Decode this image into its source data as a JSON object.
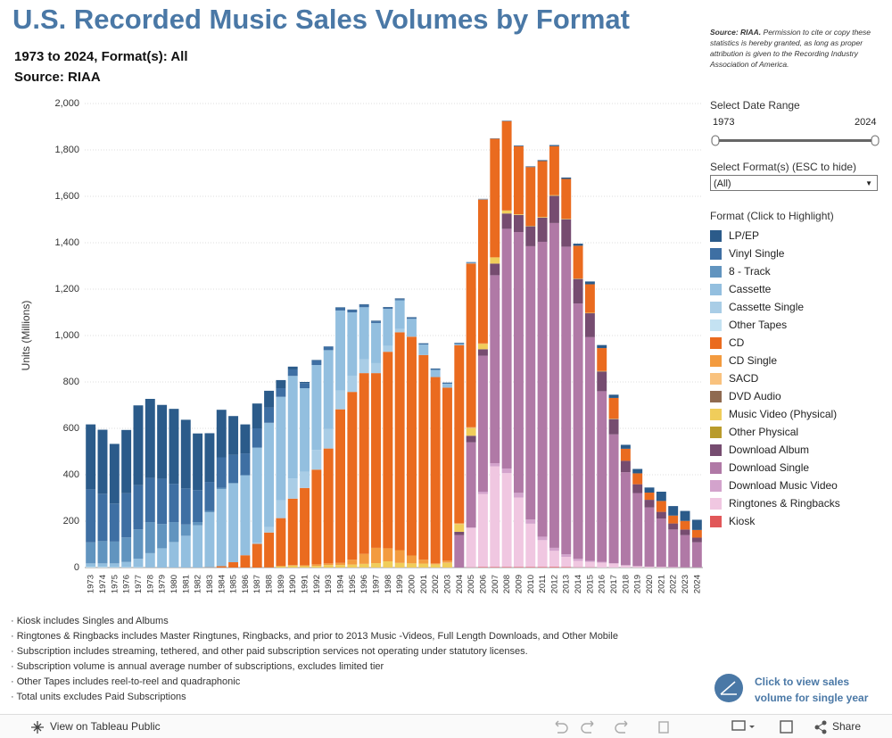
{
  "header": {
    "title": "U.S. Recorded Music Sales Volumes by Format",
    "subtitle_1": "1973 to 2024, Format(s): All",
    "subtitle_2": "Source: RIAA"
  },
  "source_note": {
    "bold": "Source: RIAA.",
    "text": "Permission to cite or copy these statistics is hereby granted, as long as proper attribution is given to the Recording Industry Association of America."
  },
  "filters": {
    "date_range_label": "Select Date Range",
    "date_start": "1973",
    "date_end": "2024",
    "format_label": "Select Format(s) (ESC to hide)",
    "format_value": "(All)",
    "legend_title": "Format (Click to Highlight)"
  },
  "footnotes": [
    "· Kiosk includes Singles and Albums",
    "· Ringtones & Ringbacks includes Master Ringtunes, Ringbacks, and prior to 2013 Music -Videos, Full Length Downloads, and Other Mobile",
    "· Subscription includes streaming, tethered, and other paid subscription services not operating under statutory licenses.",
    "· Subscription volume is annual average number of subscriptions, excludes limited tier",
    "· Other Tapes includes reel-to-reel and quadraphonic",
    "· Total units excludes Paid Subscriptions"
  ],
  "single_year_link": [
    "Click to view sales",
    "volume for single year"
  ],
  "toolbar": {
    "view": "View on Tableau Public",
    "share": "Share"
  },
  "chart_data": {
    "type": "bar",
    "stacked": true,
    "y_label": "Units (Millions)",
    "ylim": [
      0,
      2000
    ],
    "yticks": [
      0,
      200,
      400,
      600,
      800,
      {
        "value": 1000,
        "label": "1,000"
      },
      {
        "value": 1200,
        "label": "1,200"
      },
      {
        "value": 1400,
        "label": "1,400"
      },
      {
        "value": 1600,
        "label": "1,600"
      },
      {
        "value": 1800,
        "label": "1,800"
      },
      {
        "value": 2000,
        "label": "2,000"
      }
    ],
    "grid": true,
    "categories": [
      "1973",
      "1974",
      "1975",
      "1976",
      "1977",
      "1978",
      "1979",
      "1980",
      "1981",
      "1982",
      "1983",
      "1984",
      "1985",
      "1986",
      "1987",
      "1988",
      "1989",
      "1990",
      "1991",
      "1992",
      "1993",
      "1994",
      "1995",
      "1996",
      "1997",
      "1998",
      "1999",
      "2000",
      "2001",
      "2002",
      "2003",
      "2004",
      "2005",
      "2006",
      "2007",
      "2008",
      "2009",
      "2010",
      "2011",
      "2012",
      "2013",
      "2014",
      "2015",
      "2016",
      "2017",
      "2018",
      "2019",
      "2020",
      "2021",
      "2022",
      "2023",
      "2024"
    ],
    "series": [
      {
        "name": "LP/EP",
        "color": "#2b5b8a",
        "values": [
          280,
          276,
          257,
          273,
          344,
          341,
          318,
          323,
          296,
          244,
          210,
          205,
          167,
          125,
          107,
          72,
          35,
          12,
          5,
          2,
          1,
          2,
          2,
          3,
          3,
          3,
          3,
          2,
          1,
          2,
          1,
          1,
          1,
          1,
          1,
          2,
          3,
          3,
          4,
          5,
          6,
          9,
          12,
          13,
          14,
          17,
          19,
          22,
          40,
          41,
          43,
          44
        ]
      },
      {
        "name": "Vinyl Single",
        "color": "#3e6fa3",
        "values": [
          228,
          204,
          164,
          190,
          190,
          190,
          195,
          165,
          155,
          138,
          125,
          131,
          121,
          94,
          83,
          66,
          37,
          28,
          22,
          20,
          15,
          12,
          10,
          10,
          7,
          5,
          5,
          5,
          5,
          4,
          4,
          4,
          2,
          1,
          1,
          0,
          0,
          0,
          0,
          0,
          0,
          0,
          0,
          0,
          0,
          0,
          0,
          0,
          0,
          0,
          0,
          0
        ]
      },
      {
        "name": "8 - Track",
        "color": "#6194bf",
        "values": [
          91,
          96,
          94,
          106,
          127,
          134,
          105,
          86,
          49,
          14,
          6,
          6,
          3,
          0,
          0,
          0,
          0,
          0,
          0,
          0,
          0,
          0,
          0,
          0,
          0,
          0,
          0,
          0,
          0,
          0,
          0,
          0,
          0,
          0,
          0,
          0,
          0,
          0,
          0,
          0,
          0,
          0,
          0,
          0,
          0,
          0,
          0,
          0,
          0,
          0,
          0,
          0
        ]
      },
      {
        "name": "Cassette",
        "color": "#93bfdf",
        "values": [
          15,
          15,
          16,
          22,
          36,
          61,
          83,
          110,
          137,
          182,
          237,
          332,
          339,
          345,
          410,
          450,
          446,
          442,
          360,
          366,
          339,
          345,
          273,
          225,
          173,
          159,
          124,
          76,
          45,
          31,
          17,
          5,
          3,
          1,
          0,
          0,
          0,
          0,
          0,
          0,
          0,
          0,
          0,
          0,
          0,
          0,
          0,
          0,
          0,
          0,
          0,
          0
        ]
      },
      {
        "name": "Cassette Single",
        "color": "#a9cde6",
        "values": [
          0,
          0,
          0,
          0,
          0,
          0,
          0,
          0,
          0,
          0,
          0,
          0,
          0,
          0,
          5,
          23,
          77,
          87,
          70,
          85,
          85,
          81,
          70,
          59,
          43,
          26,
          14,
          1,
          0,
          0,
          0,
          0,
          0,
          0,
          0,
          0,
          0,
          0,
          0,
          0,
          0,
          0,
          0,
          0,
          0,
          0,
          0,
          0,
          0,
          0,
          0,
          0
        ]
      },
      {
        "name": "Other Tapes",
        "color": "#c4e2f2",
        "values": [
          3,
          3,
          2,
          2,
          2,
          1,
          0,
          0,
          0,
          0,
          0,
          0,
          0,
          0,
          0,
          0,
          0,
          0,
          0,
          0,
          0,
          0,
          0,
          0,
          0,
          0,
          0,
          0,
          0,
          0,
          0,
          0,
          0,
          0,
          0,
          0,
          0,
          0,
          0,
          0,
          0,
          0,
          0,
          0,
          0,
          0,
          0,
          0,
          0,
          0,
          0,
          0
        ]
      },
      {
        "name": "CD",
        "color": "#ea6b1f",
        "values": [
          0,
          0,
          0,
          0,
          0,
          0,
          0,
          0,
          0,
          0,
          1,
          6,
          23,
          53,
          102,
          150,
          207,
          287,
          333,
          408,
          495,
          662,
          723,
          779,
          753,
          847,
          939,
          943,
          882,
          803,
          746,
          767,
          705,
          620,
          511,
          385,
          293,
          253,
          241,
          211,
          172,
          141,
          123,
          99,
          89,
          52,
          47,
          31,
          47,
          34,
          37,
          33
        ]
      },
      {
        "name": "CD Single",
        "color": "#f39b3f",
        "values": [
          0,
          0,
          0,
          0,
          0,
          0,
          0,
          0,
          0,
          0,
          0,
          0,
          0,
          0,
          0,
          1,
          0,
          1,
          4,
          7,
          7,
          9,
          21,
          43,
          66,
          56,
          55,
          34,
          17,
          4,
          8,
          3,
          3,
          2,
          0,
          0,
          0,
          0,
          0,
          0,
          0,
          0,
          0,
          0,
          0,
          0,
          0,
          0,
          0,
          0,
          0,
          0
        ]
      },
      {
        "name": "SACD",
        "color": "#f9c27e",
        "values": [
          0,
          0,
          0,
          0,
          0,
          0,
          0,
          0,
          0,
          0,
          0,
          0,
          0,
          0,
          0,
          0,
          0,
          0,
          0,
          0,
          0,
          0,
          0,
          0,
          0,
          0,
          0,
          0,
          0,
          0,
          1,
          1,
          1,
          0,
          0,
          0,
          0,
          0,
          0,
          0,
          0,
          0,
          0,
          0,
          0,
          0,
          0,
          0,
          0,
          0,
          0,
          0
        ]
      },
      {
        "name": "DVD Audio",
        "color": "#8f6a50",
        "values": [
          0,
          0,
          0,
          0,
          0,
          0,
          0,
          0,
          0,
          0,
          0,
          0,
          0,
          0,
          0,
          0,
          0,
          0,
          0,
          0,
          0,
          0,
          0,
          0,
          0,
          0,
          0,
          0,
          0,
          0,
          0.4,
          0.4,
          0.5,
          0.1,
          0,
          0,
          0,
          0,
          0,
          0,
          0,
          0,
          0,
          0,
          0,
          0,
          0,
          0,
          0,
          0,
          0,
          0
        ]
      },
      {
        "name": "Music Video (Physical)",
        "color": "#f0cd5b",
        "values": [
          0,
          0,
          0,
          0,
          0,
          0,
          0,
          0,
          0,
          0,
          0,
          0,
          0,
          0,
          0,
          0,
          6,
          9,
          6,
          7,
          11,
          11,
          13,
          16,
          19,
          27,
          20,
          18,
          17,
          14,
          20,
          33,
          33,
          23,
          27,
          13,
          3,
          2,
          2,
          2,
          1,
          1,
          1,
          1,
          1,
          0,
          0,
          0,
          0,
          0,
          0,
          0
        ]
      },
      {
        "name": "Other Physical",
        "color": "#b99b2c",
        "values": [
          0,
          0,
          0,
          0,
          0,
          0,
          0,
          0,
          0,
          0,
          0,
          0,
          0,
          0,
          0,
          0,
          0,
          0,
          0,
          0,
          0,
          0,
          0,
          0,
          0,
          0,
          0,
          0,
          0,
          0,
          0,
          0,
          0,
          0,
          0,
          0,
          0,
          0,
          1,
          1,
          1,
          1,
          1,
          1,
          1,
          0,
          0,
          0,
          0,
          0,
          0,
          0
        ]
      },
      {
        "name": "Download Album",
        "color": "#764c70",
        "values": [
          0,
          0,
          0,
          0,
          0,
          0,
          0,
          0,
          0,
          0,
          0,
          0,
          0,
          0,
          0,
          0,
          0,
          0,
          0,
          0,
          0,
          0,
          0,
          0,
          0,
          0,
          0,
          0,
          0,
          0,
          0,
          14,
          28,
          28,
          50,
          66,
          74,
          86,
          104,
          117,
          118,
          106,
          103,
          85,
          66,
          49,
          38,
          33,
          29,
          26,
          24,
          20
        ]
      },
      {
        "name": "Download Single",
        "color": "#b079a6",
        "values": [
          0,
          0,
          0,
          0,
          0,
          0,
          0,
          0,
          0,
          0,
          0,
          0,
          0,
          0,
          0,
          0,
          0,
          0,
          0,
          0,
          0,
          0,
          0,
          0,
          0,
          0,
          0,
          0,
          0,
          0,
          0,
          140,
          367,
          586,
          810,
          1033,
          1124,
          1178,
          1271,
          1400,
          1326,
          1100,
          964,
          735,
          555,
          401,
          315,
          255,
          208,
          162,
          139,
          108
        ]
      },
      {
        "name": "Download Music Video",
        "color": "#d3a3cc",
        "values": [
          0,
          0,
          0,
          0,
          0,
          0,
          0,
          0,
          0,
          0,
          0,
          0,
          0,
          0,
          0,
          0,
          0,
          0,
          0,
          0,
          0,
          0,
          0,
          0,
          0,
          0,
          0,
          0,
          0,
          0,
          0,
          0,
          2,
          10,
          14,
          20,
          20,
          18,
          15,
          13,
          11,
          9,
          5,
          4,
          2,
          1,
          0,
          0,
          0,
          0,
          0,
          0
        ]
      },
      {
        "name": "Ringtones & Ringbacks",
        "color": "#f0c7e1",
        "values": [
          0,
          0,
          0,
          0,
          0,
          0,
          0,
          0,
          0,
          0,
          0,
          0,
          0,
          0,
          0,
          0,
          0,
          0,
          0,
          0,
          0,
          0,
          0,
          0,
          0,
          0,
          0,
          0,
          0,
          0,
          0,
          0,
          170,
          315,
          434,
          405,
          300,
          187,
          116,
          69,
          44,
          28,
          23,
          21,
          17,
          9,
          6,
          4,
          3,
          2,
          1,
          1
        ]
      },
      {
        "name": "Kiosk",
        "color": "#e15759",
        "values": [
          0,
          0,
          0,
          0,
          0,
          0,
          0,
          0,
          0,
          0,
          0,
          0,
          0,
          0,
          0,
          0,
          0,
          0,
          0,
          0,
          0,
          0,
          0,
          0,
          0,
          0,
          0,
          0,
          0,
          0,
          0,
          0,
          1,
          2,
          2,
          2,
          2,
          2,
          2,
          3,
          2,
          1,
          1,
          0,
          0,
          0,
          0,
          0,
          0,
          0,
          0,
          0
        ]
      }
    ]
  }
}
